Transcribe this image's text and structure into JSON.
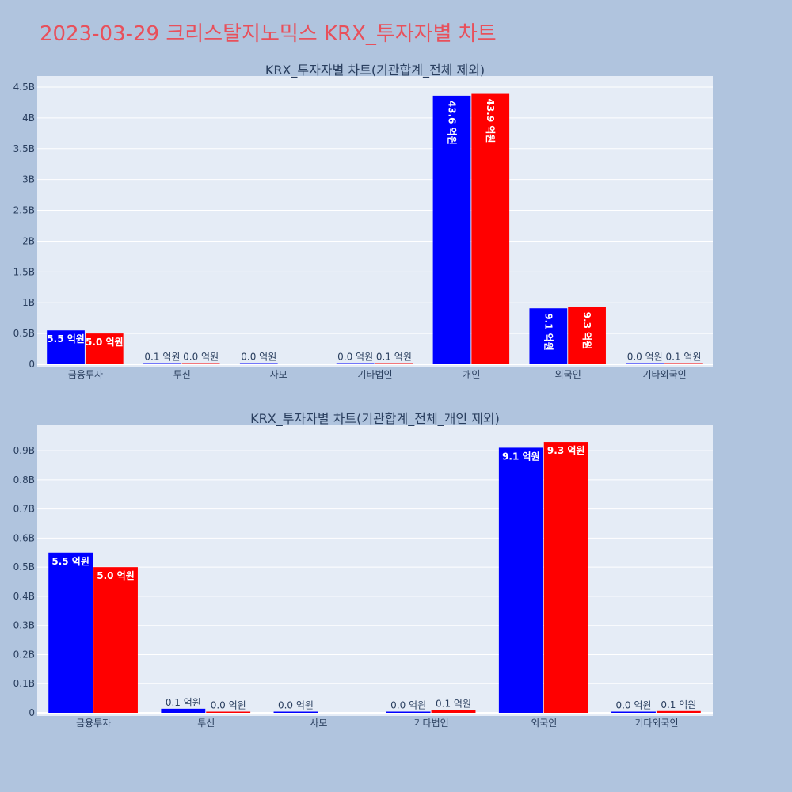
{
  "page": {
    "title": "2023-03-29 크리스탈지노믹스 KRX_투자자별 차트"
  },
  "colors": {
    "series_a": "#0000ff",
    "series_b": "#ff0000",
    "plot_bg": "#e5ecf6",
    "page_bg": "#b0c4de"
  },
  "chart_data": [
    {
      "type": "bar",
      "title": "KRX_투자자별 차트(기관합계_전체 제외)",
      "categories": [
        "금융투자",
        "투신",
        "사모",
        "기타법인",
        "개인",
        "외국인",
        "기타외국인"
      ],
      "series": [
        {
          "color": "#0000ff",
          "values": [
            550000000,
            10000000,
            1000000,
            2000000,
            4360000000,
            910000000,
            2000000
          ],
          "labels": [
            "5.5 억원",
            "0.1 억원",
            "0.0 억원",
            "0.0 억원",
            "43.6 억원",
            "9.1 억원",
            "0.0 억원"
          ]
        },
        {
          "color": "#ff0000",
          "values": [
            500000000,
            1000000,
            0,
            8000000,
            4390000000,
            930000000,
            6000000
          ],
          "labels": [
            "5.0 억원",
            "0.0 억원",
            "",
            "0.1 억원",
            "43.9 억원",
            "9.3 억원",
            "0.1 억원"
          ]
        }
      ],
      "yticks": [
        0,
        500000000,
        1000000000,
        1500000000,
        2000000000,
        2500000000,
        3000000000,
        3500000000,
        4000000000,
        4500000000
      ],
      "ytick_labels": [
        "0",
        "0.5B",
        "1B",
        "1.5B",
        "2B",
        "2.5B",
        "3B",
        "3.5B",
        "4B",
        "4.5B"
      ],
      "ylim": [
        0,
        4680000000
      ],
      "grid": true,
      "legend": "none"
    },
    {
      "type": "bar",
      "title": "KRX_투자자별 차트(기관합계_전체_개인 제외)",
      "categories": [
        "금융투자",
        "투신",
        "사모",
        "기타법인",
        "외국인",
        "기타외국인"
      ],
      "series": [
        {
          "color": "#0000ff",
          "values": [
            550000000,
            14000000,
            3000000,
            2000000,
            910000000,
            2000000
          ],
          "labels": [
            "5.5 억원",
            "0.1 억원",
            "0.0 억원",
            "0.0 억원",
            "9.1 억원",
            "0.0 억원"
          ]
        },
        {
          "color": "#ff0000",
          "values": [
            500000000,
            1000000,
            0,
            9000000,
            930000000,
            6000000
          ],
          "labels": [
            "5.0 억원",
            "0.0 억원",
            "",
            "0.1 억원",
            "9.3 억원",
            "0.1 억원"
          ]
        }
      ],
      "yticks": [
        0,
        100000000,
        200000000,
        300000000,
        400000000,
        500000000,
        600000000,
        700000000,
        800000000,
        900000000
      ],
      "ytick_labels": [
        "0",
        "0.1B",
        "0.2B",
        "0.3B",
        "0.4B",
        "0.5B",
        "0.6B",
        "0.7B",
        "0.8B",
        "0.9B"
      ],
      "ylim": [
        0,
        990000000
      ],
      "grid": true,
      "legend": "none"
    }
  ]
}
